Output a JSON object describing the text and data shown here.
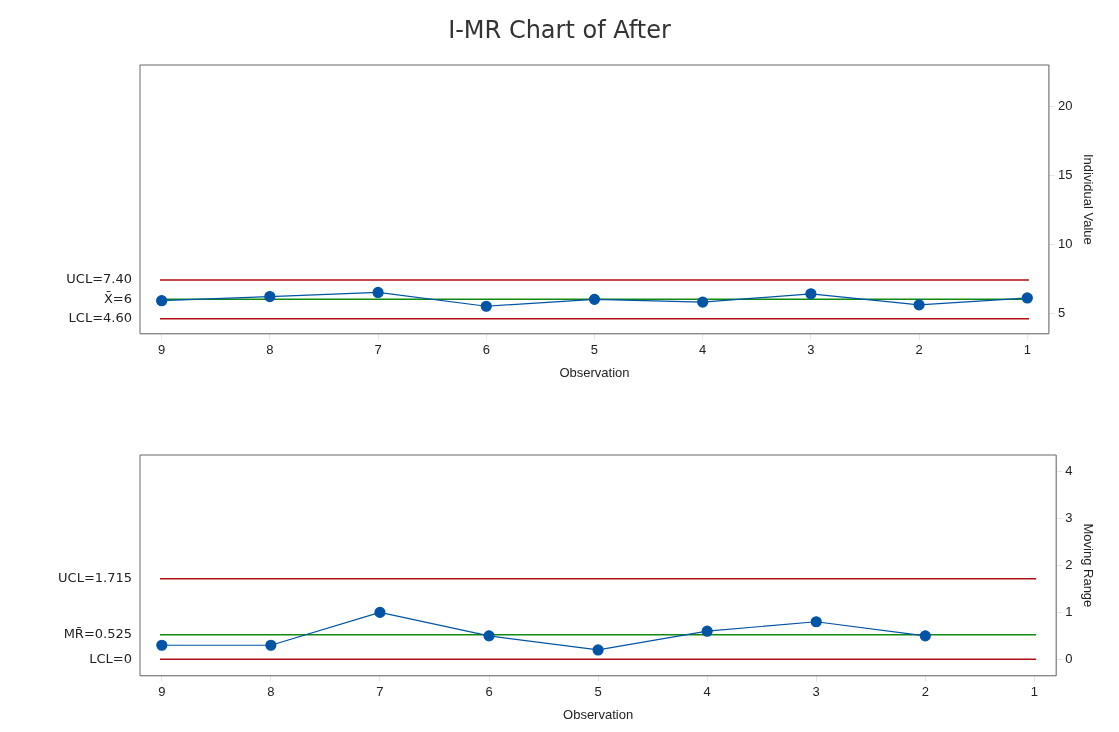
{
  "chart_data": [
    {
      "type": "line",
      "title": "I-MR Chart of After",
      "xlabel": "Observation",
      "ylabel": "Individual Value",
      "x": [
        1,
        2,
        3,
        4,
        5,
        6,
        7,
        8,
        9
      ],
      "series": [
        {
          "color": "#0054a6",
          "values": [
            6.1,
            5.6,
            6.4,
            5.8,
            6.0,
            5.5,
            6.5,
            6.2,
            5.9
          ]
        }
      ],
      "xlim": [
        9.2,
        0.8
      ],
      "xticks": [
        1,
        2,
        3,
        4,
        5,
        6,
        7,
        8,
        9
      ],
      "ylim": [
        3.5,
        23
      ],
      "yticks": [
        5,
        10,
        15,
        20
      ],
      "marker": "circle",
      "grid": false,
      "legend": false,
      "ref_lines": [
        {
          "axis": "y",
          "value": 7.4,
          "label": "UCL=7.40",
          "color": "#b01010"
        },
        {
          "axis": "y",
          "value": 6,
          "label": "X̄=6",
          "color": "#108a10"
        },
        {
          "axis": "y",
          "value": 4.6,
          "label": "LCL=4.60",
          "color": "#b01010"
        }
      ]
    },
    {
      "type": "line",
      "xlabel": "Observation",
      "ylabel": "Moving Range",
      "x": [
        2,
        3,
        4,
        5,
        6,
        7,
        8,
        9
      ],
      "series": [
        {
          "color": "#0054a6",
          "values": [
            0.5,
            0.8,
            0.6,
            0.2,
            0.5,
            1.0,
            0.3,
            0.3
          ]
        }
      ],
      "xlim": [
        9.2,
        0.8
      ],
      "xticks": [
        1,
        2,
        3,
        4,
        5,
        6,
        7,
        8,
        9
      ],
      "ylim": [
        -0.35,
        4.35
      ],
      "yticks": [
        0,
        1,
        2,
        3,
        4
      ],
      "marker": "circle",
      "grid": false,
      "legend": false,
      "ref_lines": [
        {
          "axis": "y",
          "value": 1.715,
          "label": "UCL=1.715",
          "color": "#b01010"
        },
        {
          "axis": "y",
          "value": 0.525,
          "label": "MR̄=0.525",
          "color": "#108a10"
        },
        {
          "axis": "y",
          "value": 0,
          "label": "LCL=0",
          "color": "#b01010"
        }
      ]
    }
  ]
}
